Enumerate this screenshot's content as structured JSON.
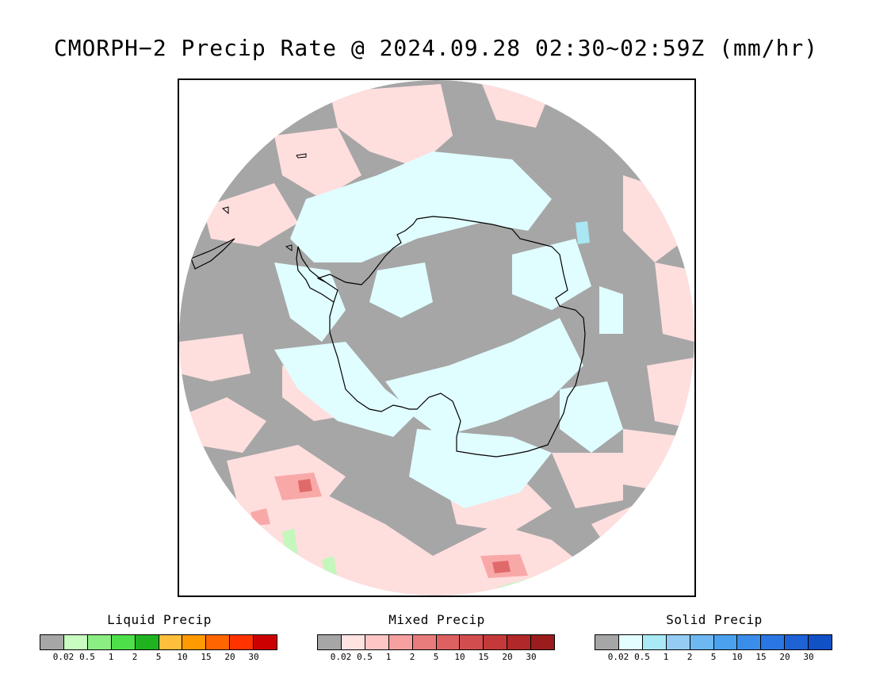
{
  "title": "CMORPH−2 Precip Rate @ 2024.09.28 02:30~02:59Z (mm/hr)",
  "map": {
    "projection": "south-polar-stereographic",
    "colors": {
      "no_precip": "#a6a6a6",
      "mixed_light": "#ffdede",
      "mixed_mid": "#f9a8a8",
      "mixed_heavy": "#e06a6a",
      "solid_light": "#e0fdff",
      "solid_mid": "#a9e7f2",
      "liquid_light": "#c4f7bc",
      "liquid_mid": "#86ec7e",
      "coastline": "#000000"
    }
  },
  "legends": [
    {
      "title": "Liquid Precip",
      "colors": [
        "#a6a6a6",
        "#c8fcc0",
        "#8bee82",
        "#4ee04a",
        "#1fb41f",
        "#ffbe3c",
        "#ff9a00",
        "#ff6600",
        "#ff3300",
        "#cc0000"
      ],
      "ticks": [
        "0.02",
        "0.5",
        "1",
        "2",
        "5",
        "10",
        "15",
        "20",
        "30"
      ]
    },
    {
      "title": "Mixed Precip",
      "colors": [
        "#a6a6a6",
        "#ffe2e2",
        "#ffc6c6",
        "#f6a0a0",
        "#e87c7c",
        "#de6060",
        "#d24e4e",
        "#c43a3a",
        "#b02828",
        "#9a1c1c"
      ],
      "ticks": [
        "0.02",
        "0.5",
        "1",
        "2",
        "5",
        "10",
        "15",
        "20",
        "30"
      ]
    },
    {
      "title": "Solid Precip",
      "colors": [
        "#a6a6a6",
        "#e2feff",
        "#aaeaf6",
        "#94ccf4",
        "#6eb8f2",
        "#4aa2ee",
        "#3a8eea",
        "#2a76e2",
        "#1e62d6",
        "#1250c6"
      ],
      "ticks": [
        "0.02",
        "0.5",
        "1",
        "2",
        "5",
        "10",
        "15",
        "20",
        "30"
      ]
    }
  ]
}
